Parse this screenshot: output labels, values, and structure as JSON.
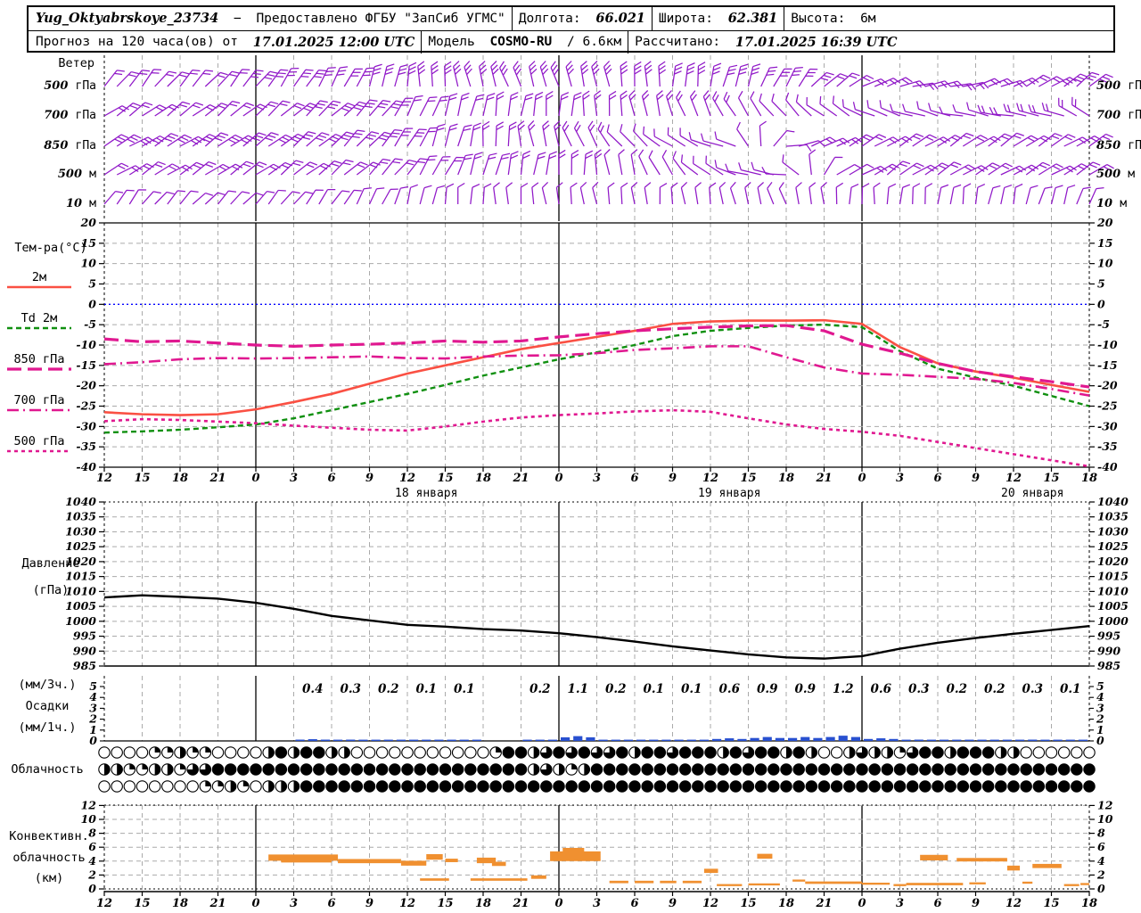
{
  "header": {
    "station": "Yug_Oktyabrskoye_23734",
    "dash": "−",
    "provided": "Предоставлено ФГБУ \"ЗапСиб УГМС\"",
    "lon_label": "Долгота:",
    "lon": "66.021",
    "lat_label": "Широта:",
    "lat": "62.381",
    "alt_label": "Высота:",
    "alt": "6м",
    "forecast_label": "Прогноз на 120 часа(ов) от",
    "run_time": "17.01.2025 12:00 UTC",
    "model_label": "Модель",
    "model": "COSMO-RU",
    "model_res": "/ 6.6км",
    "calc_label": "Рассчитано:",
    "calc_time": "17.01.2025 16:39 UTC"
  },
  "panels": {
    "wind": {
      "title": "Ветер",
      "levels": [
        "500 гПа",
        "700 гПа",
        "850 гПа",
        "500 м",
        "10 м"
      ]
    },
    "temp": {
      "title": "Тем-ра(°C)",
      "legend": [
        {
          "label": "2м"
        },
        {
          "label": "Td 2м"
        },
        {
          "label": "850 гПа"
        },
        {
          "label": "700 гПа"
        },
        {
          "label": "500 гПа"
        }
      ]
    },
    "pressure": {
      "title1": "Давление",
      "title2": "(гПа)"
    },
    "precip": {
      "title1": "(мм/3ч.)",
      "title2": "Осадки",
      "title3": "(мм/1ч.)"
    },
    "cloud": {
      "title": "Облачность"
    },
    "conv": {
      "title1": "Конвективн.",
      "title2": "облачность",
      "title3": "(км)"
    }
  },
  "colors": {
    "barb_purple": "#9018C8",
    "t2m_red": "#FA5043",
    "td_green": "#109010",
    "pink": "#E01890",
    "zero_blue": "#0000FF",
    "pressure_black": "#000000",
    "precip_blue": "#2850D0",
    "conv_orange": "#F09030",
    "grid_gray": "#AAAAAA"
  },
  "time_axis": {
    "start_label": "17.01.2025 12:00 UTC",
    "span_hours": 78,
    "tick_step_hours": 3,
    "tick_labels": [
      "12",
      "15",
      "18",
      "21",
      "0",
      "3",
      "6",
      "9",
      "12",
      "15",
      "18",
      "21",
      "0",
      "3",
      "6",
      "9",
      "12",
      "15",
      "18",
      "21",
      "0",
      "3",
      "6",
      "9",
      "12",
      "15",
      "18"
    ],
    "midnight_hours": [
      12,
      36,
      60
    ],
    "date_labels": [
      {
        "label": "18 января",
        "center_hour": 25.5
      },
      {
        "label": "19 января",
        "center_hour": 49.5
      },
      {
        "label": "20 января",
        "center_hour": 73.5
      }
    ]
  },
  "chart_data": [
    {
      "type": "wind-barbs",
      "panel": "wind",
      "rows": [
        {
          "level": "500 гПа",
          "keyframes": [
            [
              0,
              38,
              2
            ],
            [
              8,
              42,
              2
            ],
            [
              14,
              35,
              3
            ],
            [
              20,
              25,
              3
            ],
            [
              26,
              -5,
              3
            ],
            [
              32,
              -20,
              3
            ],
            [
              38,
              -15,
              3
            ],
            [
              44,
              0,
              3
            ],
            [
              50,
              15,
              3
            ],
            [
              54,
              30,
              3
            ],
            [
              58,
              55,
              2
            ],
            [
              62,
              70,
              2
            ],
            [
              66,
              80,
              2
            ],
            [
              72,
              65,
              2
            ],
            [
              78,
              50,
              3
            ]
          ]
        },
        {
          "level": "700 гПа",
          "keyframes": [
            [
              0,
              55,
              2
            ],
            [
              10,
              50,
              2
            ],
            [
              20,
              45,
              3
            ],
            [
              26,
              20,
              2
            ],
            [
              30,
              10,
              2
            ],
            [
              36,
              5,
              2
            ],
            [
              42,
              -10,
              2
            ],
            [
              48,
              -25,
              2
            ],
            [
              52,
              -35,
              1
            ],
            [
              58,
              -55,
              1
            ],
            [
              62,
              -70,
              1
            ],
            [
              68,
              -78,
              1
            ],
            [
              74,
              -80,
              2
            ],
            [
              78,
              -60,
              2
            ]
          ]
        },
        {
          "level": "850 гПа",
          "keyframes": [
            [
              0,
              60,
              3
            ],
            [
              8,
              55,
              3
            ],
            [
              16,
              50,
              3
            ],
            [
              22,
              40,
              3
            ],
            [
              26,
              20,
              2
            ],
            [
              30,
              5,
              2
            ],
            [
              34,
              -10,
              2
            ],
            [
              38,
              -25,
              2
            ],
            [
              42,
              -45,
              1
            ],
            [
              46,
              -60,
              1
            ],
            [
              50,
              -75,
              1
            ],
            [
              54,
              80,
              1
            ],
            [
              58,
              60,
              2
            ],
            [
              64,
              58,
              2
            ],
            [
              72,
              55,
              2
            ],
            [
              78,
              60,
              2
            ]
          ]
        },
        {
          "level": "500 м",
          "keyframes": [
            [
              0,
              58,
              2
            ],
            [
              10,
              55,
              2
            ],
            [
              20,
              48,
              2
            ],
            [
              26,
              30,
              2
            ],
            [
              30,
              15,
              2
            ],
            [
              36,
              5,
              2
            ],
            [
              42,
              -15,
              1
            ],
            [
              46,
              -40,
              1
            ],
            [
              50,
              -70,
              1
            ],
            [
              54,
              -85,
              1
            ],
            [
              58,
              65,
              1
            ],
            [
              62,
              55,
              2
            ],
            [
              70,
              60,
              2
            ],
            [
              78,
              58,
              2
            ]
          ]
        },
        {
          "level": "10 м",
          "keyframes": [
            [
              0,
              35,
              1
            ],
            [
              8,
              45,
              1
            ],
            [
              14,
              40,
              1
            ],
            [
              20,
              30,
              1
            ],
            [
              26,
              10,
              1
            ],
            [
              32,
              -5,
              1
            ],
            [
              38,
              -10,
              1
            ],
            [
              44,
              -5,
              1
            ],
            [
              50,
              -12,
              1
            ],
            [
              54,
              -20,
              1
            ],
            [
              58,
              0,
              1
            ],
            [
              64,
              5,
              1
            ],
            [
              70,
              10,
              1
            ],
            [
              78,
              20,
              1
            ]
          ]
        }
      ]
    },
    {
      "type": "line",
      "panel": "temperature",
      "ylabel": "Тем-ра(°C)",
      "ylim": [
        -40,
        20
      ],
      "ytick_step": 5,
      "yticks": [
        20,
        15,
        10,
        5,
        0,
        -5,
        -10,
        -15,
        -20,
        -25,
        -30,
        -35,
        -40
      ],
      "x_start_hour": 0,
      "x_step_hours": 3,
      "series": [
        {
          "name": "2м",
          "color": "#FA5043",
          "style": "solid",
          "width": 2.6,
          "values": [
            -26.5,
            -27,
            -27.2,
            -27,
            -25.8,
            -24,
            -22,
            -19.5,
            -17,
            -15,
            -13,
            -11,
            -9.5,
            -8,
            -6.5,
            -4.8,
            -4.2,
            -4,
            -4,
            -3.9,
            -4.8,
            -10.5,
            -14.5,
            -16.5,
            -18,
            -19.8,
            -21.5
          ]
        },
        {
          "name": "Td 2м",
          "color": "#109010",
          "style": "dash",
          "width": 2.4,
          "values": [
            -31.5,
            -31.2,
            -30.8,
            -30.2,
            -29.5,
            -28,
            -26,
            -24,
            -22,
            -19.8,
            -17.5,
            -15.5,
            -13.5,
            -11.8,
            -10,
            -7.8,
            -6.5,
            -5.8,
            -5.2,
            -5,
            -5.6,
            -11.5,
            -15.8,
            -18,
            -20,
            -22.5,
            -25
          ]
        },
        {
          "name": "850 гПа",
          "color": "#E01890",
          "style": "longdash",
          "width": 3.2,
          "values": [
            -8.5,
            -9.2,
            -9,
            -9.5,
            -10,
            -10.3,
            -10,
            -9.8,
            -9.5,
            -9,
            -9.3,
            -9,
            -8,
            -7.2,
            -6.5,
            -6,
            -5.6,
            -5.3,
            -5.2,
            -6.5,
            -9.8,
            -12,
            -14.5,
            -16.5,
            -17.8,
            -19,
            -20.3
          ]
        },
        {
          "name": "700 гПа",
          "color": "#E01890",
          "style": "dashdot",
          "width": 2.6,
          "values": [
            -14.7,
            -14.2,
            -13.5,
            -13.2,
            -13.3,
            -13.2,
            -13,
            -12.8,
            -13.2,
            -13.3,
            -12.8,
            -12.6,
            -12.5,
            -12,
            -11.2,
            -10.8,
            -10.3,
            -10.3,
            -13,
            -15.5,
            -17,
            -17.3,
            -17.8,
            -18.3,
            -19.3,
            -20.8,
            -22.4
          ]
        },
        {
          "name": "500 гПа",
          "color": "#E01890",
          "style": "shortdash",
          "width": 2.6,
          "values": [
            -28.7,
            -28.2,
            -28.4,
            -28.8,
            -29.2,
            -29.8,
            -30.3,
            -30.8,
            -31,
            -30,
            -28.8,
            -27.8,
            -27.2,
            -26.8,
            -26.3,
            -26,
            -26.4,
            -28,
            -29.5,
            -30.6,
            -31.3,
            -32.3,
            -33.8,
            -35.3,
            -36.8,
            -38.3,
            -39.8
          ]
        }
      ],
      "zero_line": 0
    },
    {
      "type": "line",
      "panel": "pressure",
      "ylabel": "Давление (гПа)",
      "ylim": [
        985,
        1040
      ],
      "yticks": [
        1040,
        1035,
        1030,
        1025,
        1020,
        1015,
        1010,
        1005,
        1000,
        995,
        990,
        985
      ],
      "x_start_hour": 0,
      "x_step_hours": 3,
      "series": [
        {
          "name": "Давление",
          "color": "#000000",
          "style": "solid",
          "width": 2.4,
          "values": [
            1008,
            1008.7,
            1008.2,
            1007.6,
            1006.2,
            1004.2,
            1001.8,
            1000.3,
            998.8,
            998.2,
            997.4,
            996.9,
            996,
            994.7,
            993.2,
            991.6,
            990.2,
            988.9,
            987.9,
            987.5,
            988.3,
            990.8,
            992.8,
            994.4,
            995.8,
            997.1,
            998.4
          ]
        }
      ]
    },
    {
      "type": "bar",
      "panel": "precipitation",
      "ylabel": "Осадки (мм/3ч., мм/1ч.)",
      "ylim": [
        0,
        6
      ],
      "yticks": [
        5,
        4,
        3,
        2,
        1,
        0
      ],
      "slots_3h": [
        [
          15,
          0.4
        ],
        [
          18,
          0.3
        ],
        [
          21,
          0.2
        ],
        [
          24,
          0.1
        ],
        [
          27,
          0.1
        ],
        [
          33,
          0.2
        ],
        [
          36,
          1.1
        ],
        [
          39,
          0.2
        ],
        [
          42,
          0.1
        ],
        [
          45,
          0.1
        ],
        [
          48,
          0.6
        ],
        [
          51,
          0.9
        ],
        [
          54,
          0.9
        ],
        [
          57,
          1.2
        ],
        [
          60,
          0.6
        ],
        [
          63,
          0.3
        ],
        [
          66,
          0.2
        ],
        [
          69,
          0.2
        ],
        [
          72,
          0.3
        ],
        [
          75,
          0.1
        ]
      ]
    },
    {
      "type": "symbols",
      "panel": "cloudiness",
      "octa_scale": {
        "0": "clear",
        "1": "quarter",
        "2": "half",
        "3": "three-quarter",
        "4": "overcast"
      },
      "rows": [
        {
          "name": "upper",
          "octas": "0000112110000242442200000000000144234343342443444243442420023221344244422000000"
        },
        {
          "name": "middle",
          "octas": "2211221334444444444444444444444444232124444444444444444444444444444444444444444"
        },
        {
          "name": "lower",
          "octas": "0000000011210222444444444444444444444444444444444444444444444444444444444444444"
        }
      ]
    },
    {
      "type": "segments",
      "panel": "convective-cloud",
      "ylabel": "Конвективн. облачность (км)",
      "ylim": [
        0,
        12
      ],
      "yticks": [
        12,
        10,
        8,
        6,
        4,
        2,
        0
      ],
      "segments": [
        [
          13,
          18.5,
          4.5,
          0.9
        ],
        [
          14,
          18,
          4.1,
          0.6
        ],
        [
          18.5,
          23.5,
          4.0,
          0.6
        ],
        [
          23.5,
          25.5,
          3.7,
          0.7
        ],
        [
          25.5,
          26.8,
          4.6,
          0.8
        ],
        [
          27,
          28,
          4.1,
          0.5
        ],
        [
          29.5,
          31,
          4.1,
          0.8
        ],
        [
          30.7,
          31.8,
          3.6,
          0.6
        ],
        [
          25,
          27.3,
          1.35,
          0.35
        ],
        [
          29,
          33.5,
          1.35,
          0.35
        ],
        [
          33.8,
          35,
          1.7,
          0.5
        ],
        [
          35.3,
          39.3,
          4.7,
          1.4
        ],
        [
          36.3,
          38,
          5.6,
          0.6
        ],
        [
          40,
          41.5,
          1.0,
          0.35
        ],
        [
          42,
          43.5,
          1.0,
          0.35
        ],
        [
          44,
          45.3,
          1.0,
          0.35
        ],
        [
          45.8,
          47.3,
          1.0,
          0.35
        ],
        [
          47.5,
          48.6,
          2.6,
          0.6
        ],
        [
          48.5,
          50.5,
          0.55,
          0.3
        ],
        [
          51,
          53.5,
          0.65,
          0.3
        ],
        [
          51.7,
          52.9,
          4.7,
          0.7
        ],
        [
          54.5,
          55.5,
          1.2,
          0.3
        ],
        [
          55.5,
          60,
          0.9,
          0.35
        ],
        [
          60,
          62.2,
          0.75,
          0.3
        ],
        [
          62.5,
          63.5,
          0.55,
          0.3
        ],
        [
          63.5,
          68,
          0.7,
          0.35
        ],
        [
          68.5,
          69.8,
          0.8,
          0.3
        ],
        [
          64.6,
          66.8,
          4.5,
          0.8
        ],
        [
          67.5,
          71.5,
          4.2,
          0.5
        ],
        [
          71.5,
          72.5,
          3.0,
          0.7
        ],
        [
          73.5,
          75.8,
          3.3,
          0.6
        ],
        [
          72.7,
          73.5,
          0.9,
          0.3
        ],
        [
          76,
          77.2,
          0.55,
          0.3
        ],
        [
          77.3,
          78,
          0.7,
          0.3
        ]
      ]
    }
  ]
}
